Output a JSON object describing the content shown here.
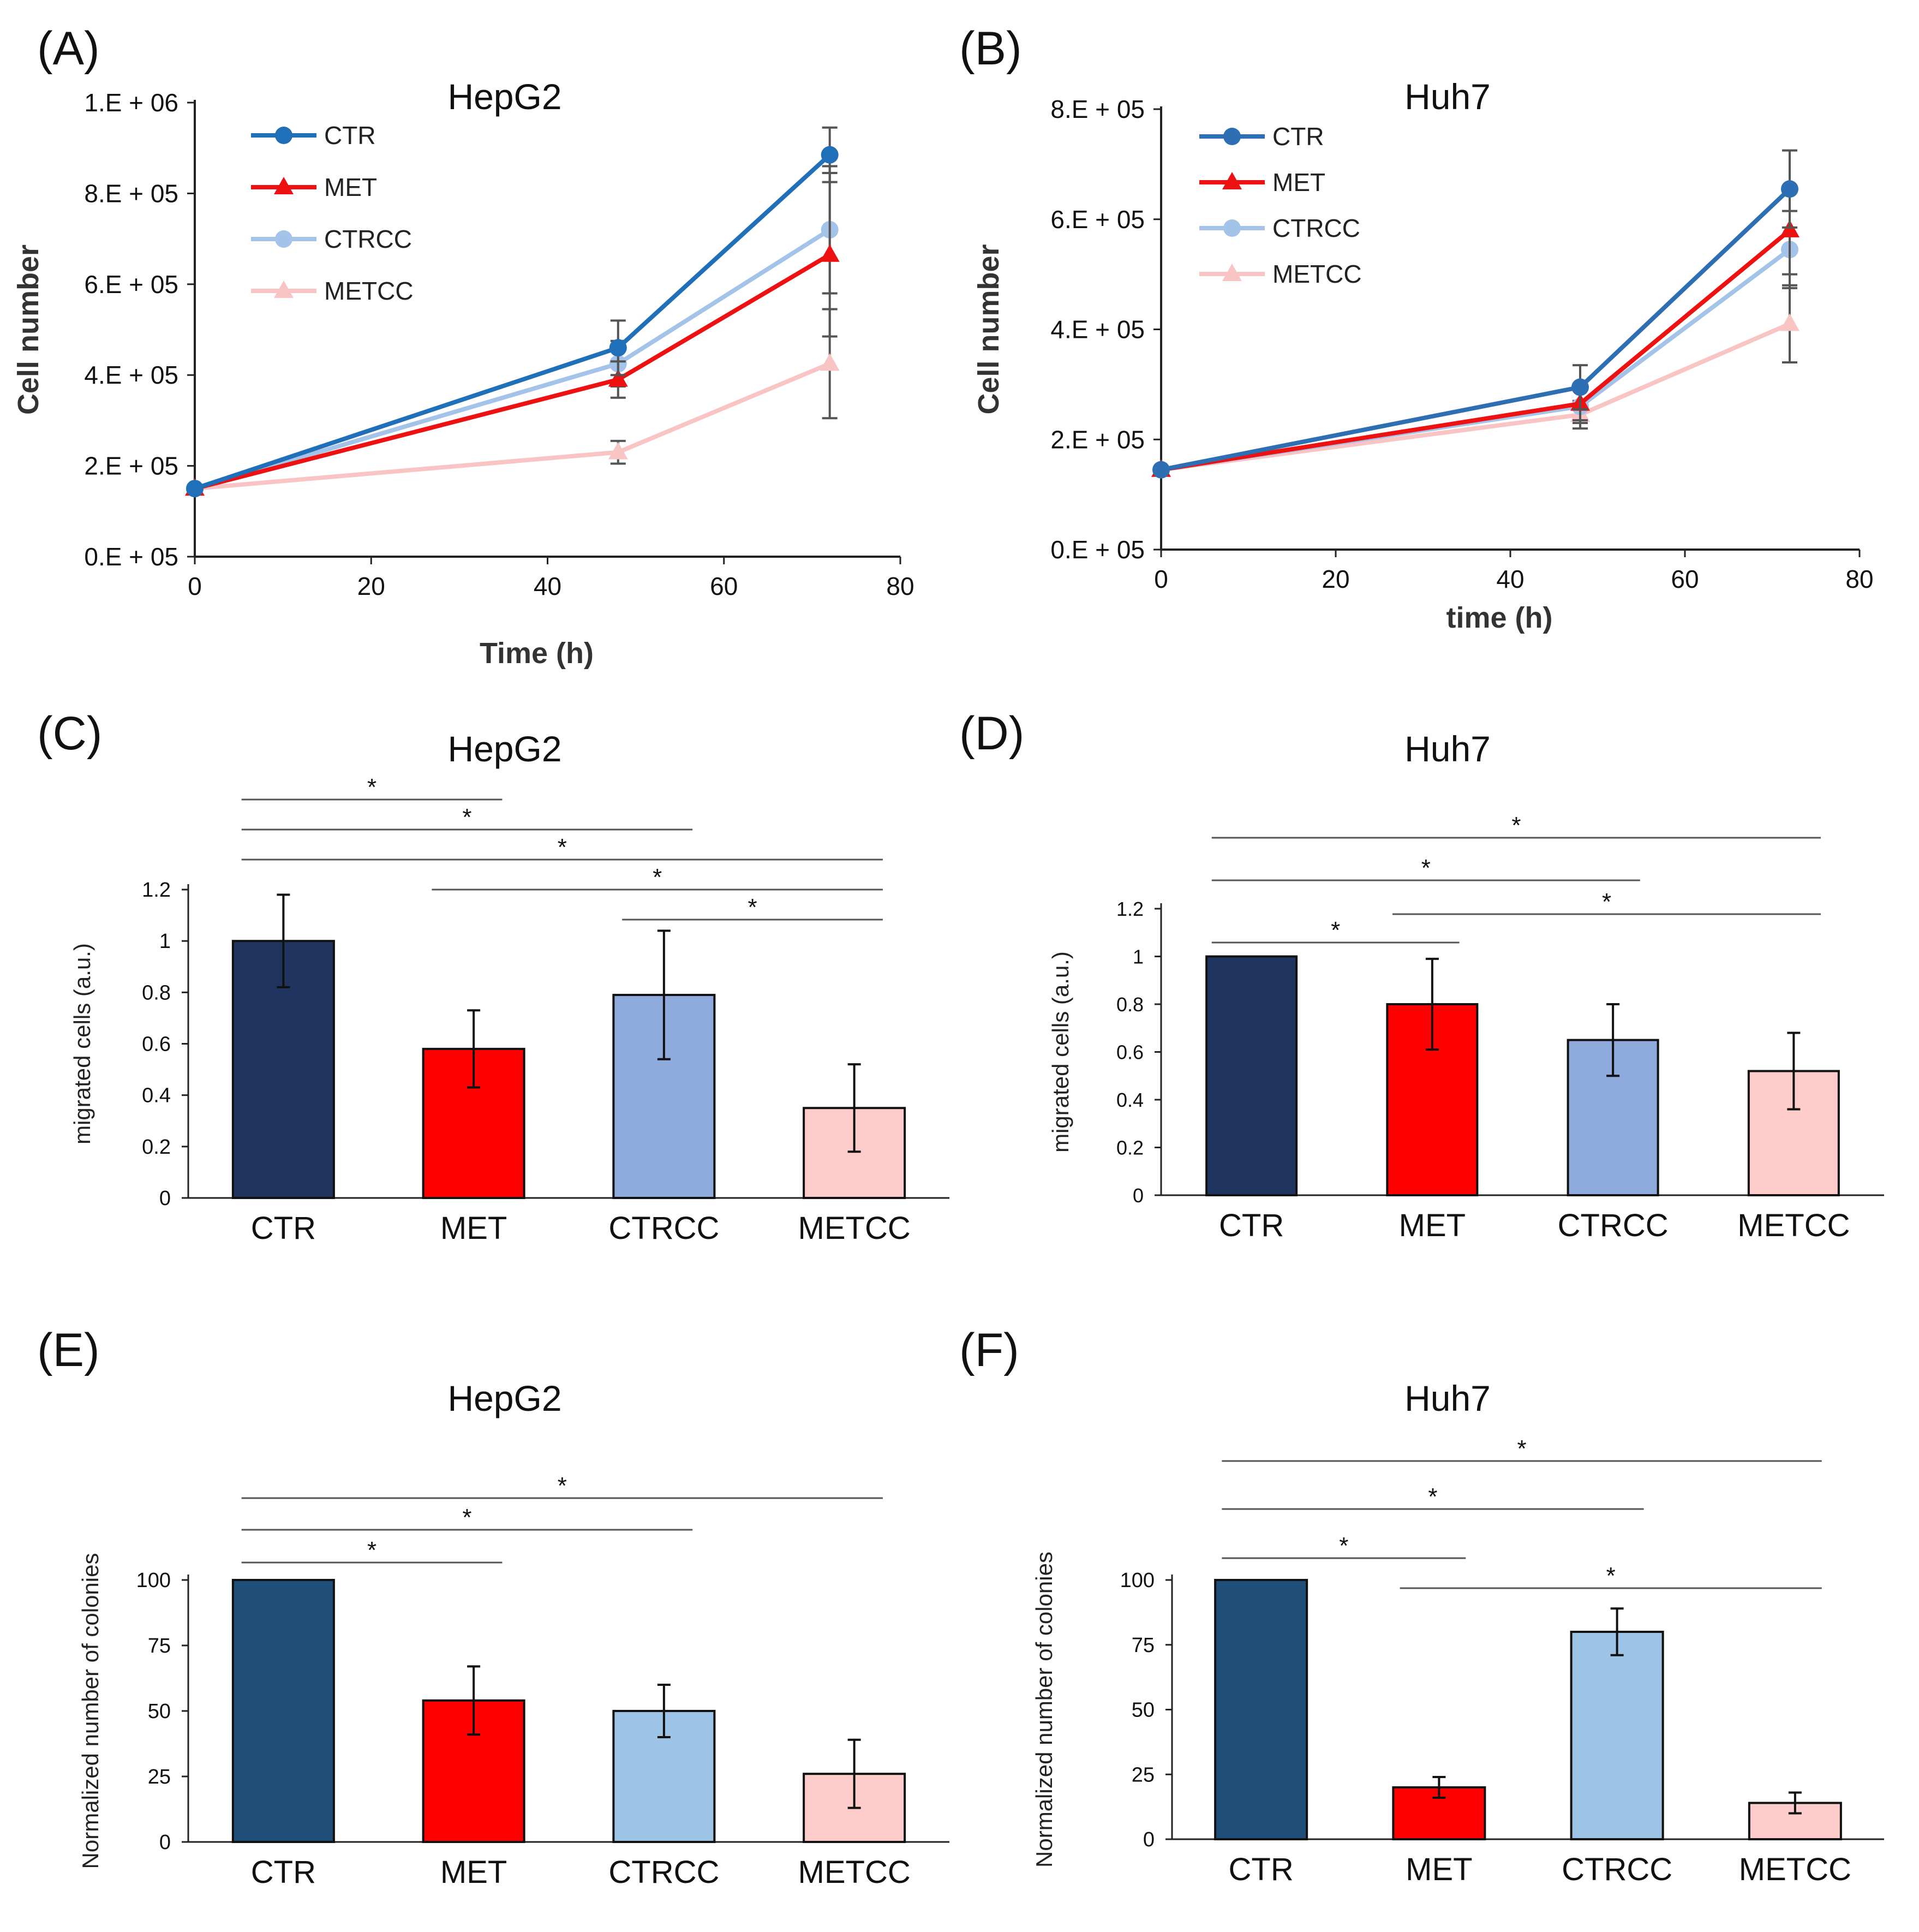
{
  "chart_data": [
    {
      "id": "A",
      "panel_label": "(A)",
      "type": "line",
      "title": "HepG2",
      "xlabel": "Time (h)",
      "ylabel": "Cell number",
      "xlim": [
        0,
        80
      ],
      "ylim": [
        0,
        1000000
      ],
      "xticks": [
        0,
        20,
        40,
        60,
        80
      ],
      "xtick_labels": [
        "0",
        "20",
        "40",
        "60",
        "80"
      ],
      "yticks": [
        0,
        200000,
        400000,
        600000,
        800000,
        1000000
      ],
      "ytick_labels": [
        "0.E + 05",
        "2.E + 05",
        "4.E + 05",
        "6.E + 05",
        "8.E + 05",
        "1.E + 06"
      ],
      "legend_position": "top-left",
      "series": [
        {
          "name": "CTR",
          "color": "#1f6fb9",
          "marker": "circle",
          "x": [
            0,
            48,
            72
          ],
          "values": [
            150000,
            460000,
            885000
          ],
          "err": [
            0,
            60000,
            60000
          ]
        },
        {
          "name": "MET",
          "color": "#ee1111",
          "marker": "triangle",
          "x": [
            0,
            48,
            72
          ],
          "values": [
            150000,
            390000,
            665000
          ],
          "err": [
            0,
            40000,
            180000
          ]
        },
        {
          "name": "CTRCC",
          "color": "#a3c4e8",
          "marker": "circle",
          "x": [
            0,
            48,
            72
          ],
          "values": [
            150000,
            425000,
            720000
          ],
          "err": [
            0,
            50000,
            140000
          ]
        },
        {
          "name": "METCC",
          "color": "#f9c4c4",
          "marker": "triangle",
          "x": [
            0,
            48,
            72
          ],
          "values": [
            150000,
            230000,
            425000
          ],
          "err": [
            0,
            25000,
            120000
          ]
        }
      ]
    },
    {
      "id": "B",
      "panel_label": "(B)",
      "type": "line",
      "title": "Huh7",
      "xlabel": "time (h)",
      "ylabel": "Cell number",
      "xlim": [
        0,
        80
      ],
      "ylim": [
        0,
        800000
      ],
      "xticks": [
        0,
        20,
        40,
        60,
        80
      ],
      "xtick_labels": [
        "0",
        "20",
        "40",
        "60",
        "80"
      ],
      "yticks": [
        0,
        200000,
        400000,
        600000,
        800000
      ],
      "ytick_labels": [
        "0.E + 05",
        "2.E + 05",
        "4.E + 05",
        "6.E + 05",
        "8.E + 05"
      ],
      "legend_position": "top-left",
      "series": [
        {
          "name": "CTR",
          "color": "#2e6eb3",
          "marker": "circle",
          "x": [
            0,
            48,
            72
          ],
          "values": [
            145000,
            295000,
            655000
          ],
          "err": [
            0,
            40000,
            70000
          ]
        },
        {
          "name": "MET",
          "color": "#ee1111",
          "marker": "triangle",
          "x": [
            0,
            48,
            72
          ],
          "values": [
            145000,
            265000,
            580000
          ],
          "err": [
            0,
            30000,
            80000
          ]
        },
        {
          "name": "CTRCC",
          "color": "#a3c4e8",
          "marker": "circle",
          "x": [
            0,
            48,
            72
          ],
          "values": [
            145000,
            260000,
            545000
          ],
          "err": [
            0,
            30000,
            70000
          ]
        },
        {
          "name": "METCC",
          "color": "#f9c4c4",
          "marker": "triangle",
          "x": [
            0,
            48,
            72
          ],
          "values": [
            145000,
            245000,
            410000
          ],
          "err": [
            0,
            25000,
            70000
          ]
        }
      ]
    },
    {
      "id": "C",
      "panel_label": "(C)",
      "type": "bar",
      "title": "HepG2",
      "xlabel": "",
      "ylabel": "migrated cells (a.u.)",
      "ylim": [
        0,
        1.2
      ],
      "yticks": [
        0,
        0.2,
        0.4,
        0.6,
        0.8,
        1,
        1.2
      ],
      "ytick_labels": [
        "0",
        "0.2",
        "0.4",
        "0.6",
        "0.8",
        "1",
        "1.2"
      ],
      "categories": [
        "CTR",
        "MET",
        "CTRCC",
        "METCC"
      ],
      "values": [
        1.0,
        0.58,
        0.79,
        0.35
      ],
      "err": [
        0.18,
        0.15,
        0.25,
        0.17
      ],
      "colors": [
        "#1f3560",
        "#ff0000",
        "#8faadc",
        "#ffcccc"
      ],
      "significance": [
        {
          "from": 0,
          "to": 1,
          "label": "*"
        },
        {
          "from": 0,
          "to": 2,
          "label": "*"
        },
        {
          "from": 0,
          "to": 3,
          "label": "*"
        },
        {
          "from": 1,
          "to": 3,
          "label": "*"
        },
        {
          "from": 2,
          "to": 3,
          "label": "*"
        }
      ]
    },
    {
      "id": "D",
      "panel_label": "(D)",
      "type": "bar",
      "title": "Huh7",
      "xlabel": "",
      "ylabel": "migrated cells (a.u.)",
      "ylim": [
        0,
        1.2
      ],
      "yticks": [
        0,
        0.2,
        0.4,
        0.6,
        0.8,
        1,
        1.2
      ],
      "ytick_labels": [
        "0",
        "0.2",
        "0.4",
        "0.6",
        "0.8",
        "1",
        "1.2"
      ],
      "categories": [
        "CTR",
        "MET",
        "CTRCC",
        "METCC"
      ],
      "values": [
        1.0,
        0.8,
        0.65,
        0.52
      ],
      "err": [
        0,
        0.19,
        0.15,
        0.16
      ],
      "colors": [
        "#1f3560",
        "#ff0000",
        "#8faadc",
        "#ffcccc"
      ],
      "significance": [
        {
          "from": 0,
          "to": 3,
          "label": "*"
        },
        {
          "from": 0,
          "to": 2,
          "label": "*"
        },
        {
          "from": 1,
          "to": 3,
          "label": "*"
        },
        {
          "from": 0,
          "to": 1,
          "label": "*"
        }
      ]
    },
    {
      "id": "E",
      "panel_label": "(E)",
      "type": "bar",
      "title": "HepG2",
      "xlabel": "",
      "ylabel": "Normalized number of colonies",
      "ylim": [
        0,
        100
      ],
      "yticks": [
        0,
        25,
        50,
        75,
        100
      ],
      "ytick_labels": [
        "0",
        "25",
        "50",
        "75",
        "100"
      ],
      "categories": [
        "CTR",
        "MET",
        "CTRCC",
        "METCC"
      ],
      "values": [
        100,
        54,
        50,
        26
      ],
      "err": [
        0,
        13,
        10,
        13
      ],
      "colors": [
        "#1f4e79",
        "#ff0000",
        "#9dc3e6",
        "#ffcccc"
      ],
      "significance": [
        {
          "from": 0,
          "to": 3,
          "label": "*"
        },
        {
          "from": 0,
          "to": 2,
          "label": "*"
        },
        {
          "from": 0,
          "to": 1,
          "label": "*"
        }
      ]
    },
    {
      "id": "F",
      "panel_label": "(F)",
      "type": "bar",
      "title": "Huh7",
      "xlabel": "",
      "ylabel": "Normalized number of colonies",
      "ylim": [
        0,
        100
      ],
      "yticks": [
        0,
        25,
        50,
        75,
        100
      ],
      "ytick_labels": [
        "0",
        "25",
        "50",
        "75",
        "100"
      ],
      "categories": [
        "CTR",
        "MET",
        "CTRCC",
        "METCC"
      ],
      "values": [
        100,
        20,
        80,
        14
      ],
      "err": [
        0,
        4,
        9,
        4
      ],
      "colors": [
        "#1f4e79",
        "#ff0000",
        "#9dc3e6",
        "#ffcccc"
      ],
      "significance": [
        {
          "from": 0,
          "to": 3,
          "label": "*"
        },
        {
          "from": 0,
          "to": 2,
          "label": "*"
        },
        {
          "from": 0,
          "to": 1,
          "label": "*"
        },
        {
          "from": 1,
          "to": 3,
          "label": "*"
        }
      ]
    }
  ]
}
